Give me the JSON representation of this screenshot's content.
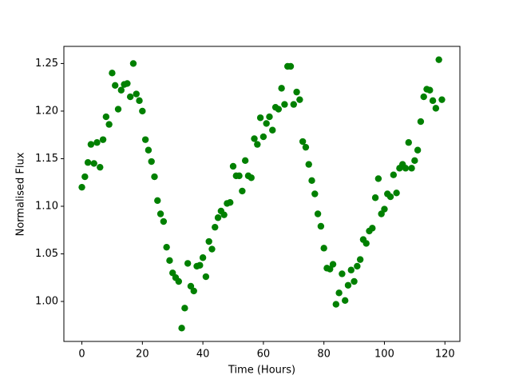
{
  "chart_data": {
    "type": "scatter",
    "xlabel": "Time (Hours)",
    "ylabel": "Normalised Flux",
    "x": [
      0,
      1,
      2,
      3,
      4,
      5,
      6,
      7,
      8,
      9,
      10,
      11,
      12,
      13,
      14,
      15,
      16,
      17,
      18,
      19,
      20,
      21,
      22,
      23,
      24,
      25,
      26,
      27,
      28,
      29,
      30,
      31,
      32,
      33,
      34,
      35,
      36,
      37,
      38,
      39,
      40,
      41,
      42,
      43,
      44,
      45,
      46,
      47,
      48,
      49,
      50,
      51,
      52,
      53,
      54,
      55,
      56,
      57,
      58,
      59,
      60,
      61,
      62,
      63,
      64,
      65,
      66,
      67,
      68,
      69,
      70,
      71,
      72,
      73,
      74,
      75,
      76,
      77,
      78,
      79,
      80,
      81,
      82,
      83,
      84,
      85,
      86,
      87,
      88,
      89,
      90,
      91,
      92,
      93,
      94,
      95,
      96,
      97,
      98,
      99,
      100,
      101,
      102,
      103,
      104,
      105,
      106,
      107,
      108,
      109,
      110,
      111,
      112,
      113,
      114,
      115,
      116,
      117,
      118,
      119
    ],
    "values": [
      1.12,
      1.131,
      1.146,
      1.165,
      1.145,
      1.167,
      1.141,
      1.17,
      1.194,
      1.186,
      1.24,
      1.227,
      1.202,
      1.222,
      1.228,
      1.229,
      1.215,
      1.25,
      1.218,
      1.211,
      1.2,
      1.17,
      1.159,
      1.147,
      1.131,
      1.106,
      1.092,
      1.084,
      1.057,
      1.043,
      1.03,
      1.025,
      1.021,
      0.972,
      0.993,
      1.04,
      1.016,
      1.011,
      1.037,
      1.038,
      1.046,
      1.026,
      1.063,
      1.055,
      1.078,
      1.088,
      1.095,
      1.091,
      1.103,
      1.104,
      1.142,
      1.132,
      1.132,
      1.116,
      1.148,
      1.132,
      1.13,
      1.171,
      1.165,
      1.193,
      1.173,
      1.187,
      1.194,
      1.18,
      1.204,
      1.202,
      1.224,
      1.207,
      1.247,
      1.247,
      1.207,
      1.22,
      1.212,
      1.168,
      1.162,
      1.144,
      1.127,
      1.113,
      1.092,
      1.079,
      1.056,
      1.035,
      1.034,
      1.039,
      0.997,
      1.009,
      1.029,
      1.001,
      1.017,
      1.033,
      1.021,
      1.037,
      1.044,
      1.065,
      1.061,
      1.074,
      1.077,
      1.109,
      1.129,
      1.092,
      1.097,
      1.113,
      1.11,
      1.133,
      1.114,
      1.14,
      1.144,
      1.14,
      1.167,
      1.14,
      1.148,
      1.159,
      1.189,
      1.215,
      1.223,
      1.222,
      1.211,
      1.203,
      1.254,
      1.212
    ],
    "color": "#008000",
    "xlim": [
      -5.95,
      124.95
    ],
    "xticks": [
      0,
      20,
      40,
      60,
      80,
      100,
      120
    ],
    "ylim": [
      0.958,
      1.268
    ],
    "yticks": [
      {
        "value": 1.0,
        "label": "1.00"
      },
      1.05,
      {
        "value": 1.1,
        "label": "1.10"
      },
      1.15,
      {
        "value": 1.2,
        "label": "1.20"
      },
      1.25
    ],
    "grid": false
  }
}
